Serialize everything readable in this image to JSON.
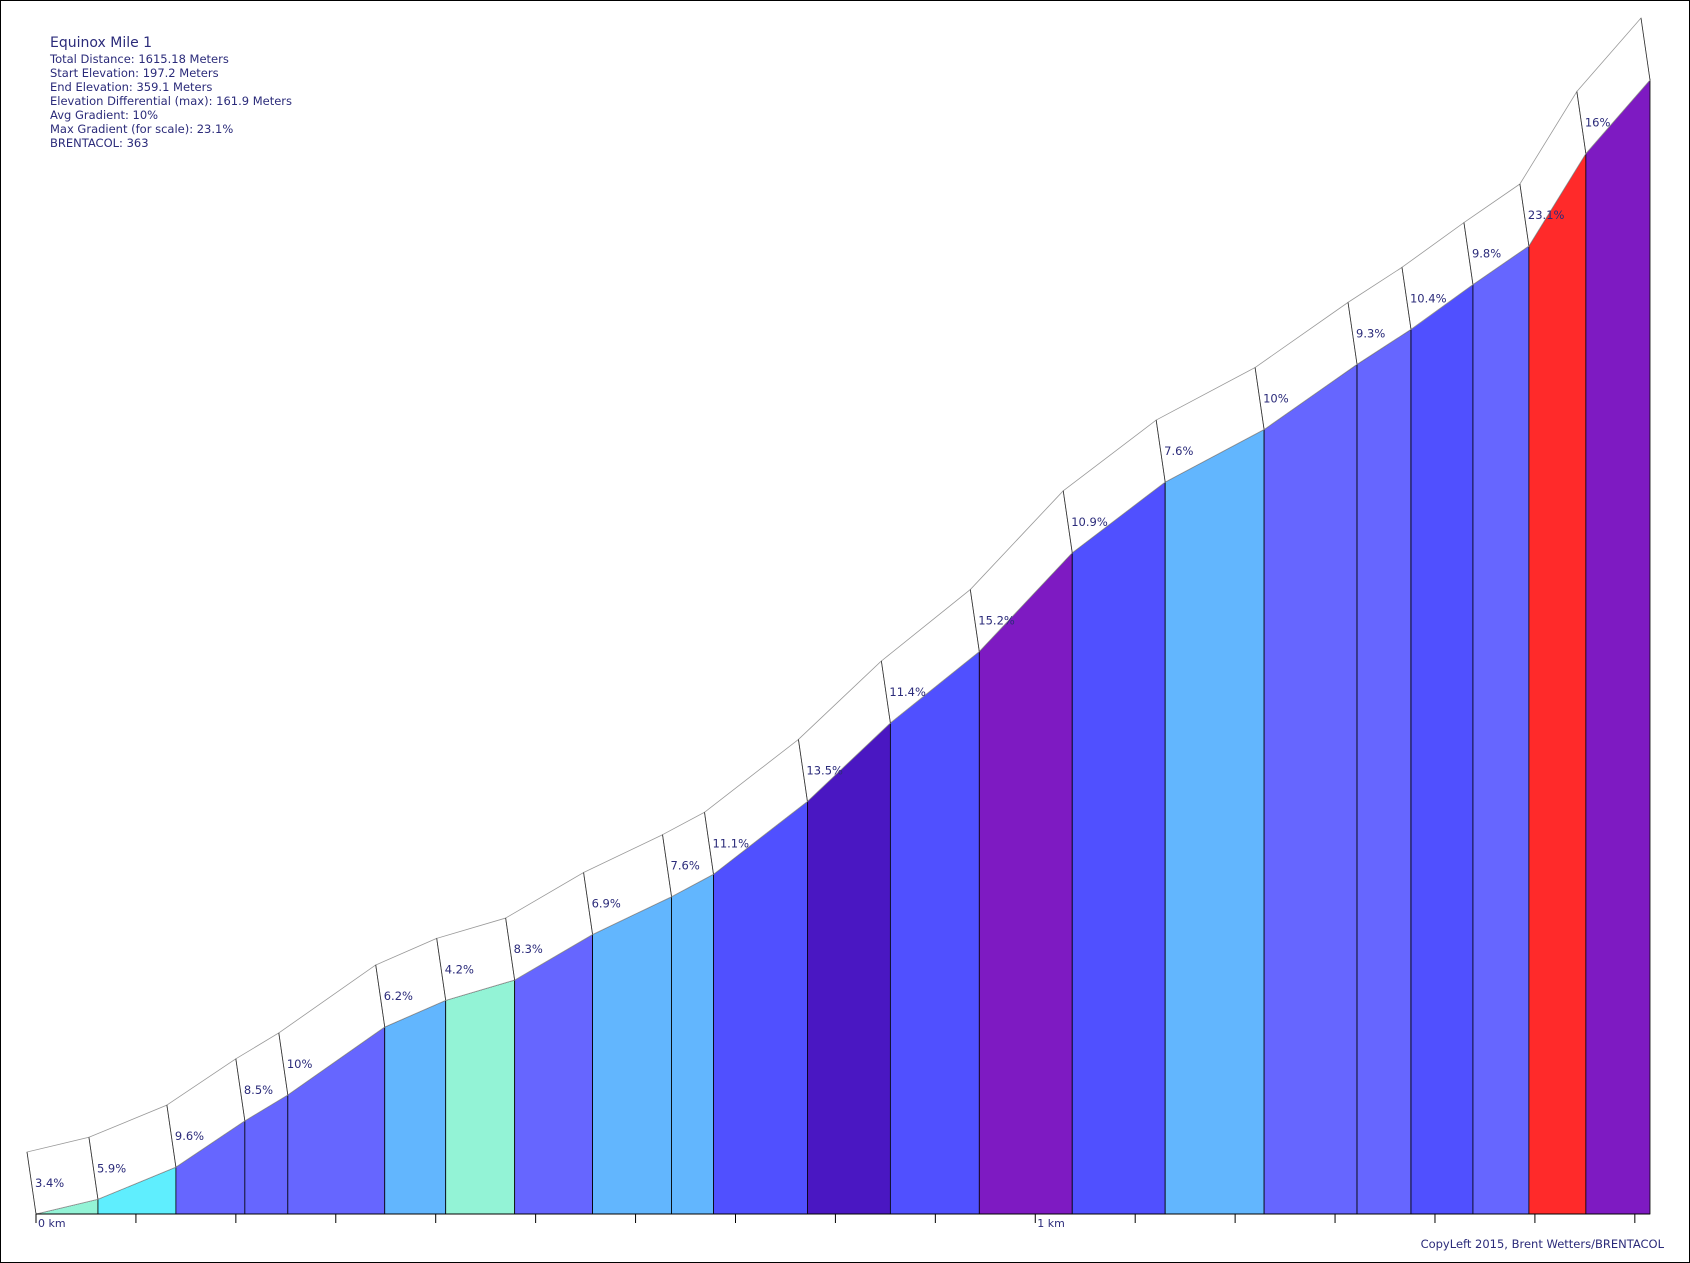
{
  "info": {
    "title": "Equinox Mile 1",
    "lines": [
      "Total Distance: 1615.18 Meters",
      "Start Elevation: 197.2 Meters",
      "End Elevation: 359.1 Meters",
      "Elevation Differential (max): 161.9 Meters",
      "Avg Gradient: 10%",
      "Max Gradient (for scale): 23.1%",
      "BRENTACOL: 363"
    ]
  },
  "copyleft": "CopyLeft 2015, Brent Wetters/BRENTACOL",
  "chart_data": {
    "type": "area",
    "title": "Equinox Mile 1",
    "xlabel": "",
    "ylabel": "",
    "x_unit": "km",
    "x_tick_labels": [
      "0 km",
      "1 km"
    ],
    "xlim": [
      0,
      1.61518
    ],
    "ylim": [
      197.2,
      359.1
    ],
    "segments": [
      {
        "start_km": 0.0,
        "end_km": 0.062,
        "gradient": 3.4,
        "label": "3.4%",
        "color": "#93f3d6"
      },
      {
        "start_km": 0.062,
        "end_km": 0.14,
        "gradient": 5.9,
        "label": "5.9%",
        "color": "#5feefe"
      },
      {
        "start_km": 0.14,
        "end_km": 0.209,
        "gradient": 9.6,
        "label": "9.6%",
        "color": "#6666ff"
      },
      {
        "start_km": 0.209,
        "end_km": 0.252,
        "gradient": 8.5,
        "label": "8.5%",
        "color": "#6666ff"
      },
      {
        "start_km": 0.252,
        "end_km": 0.349,
        "gradient": 10,
        "label": "10%",
        "color": "#6666ff"
      },
      {
        "start_km": 0.349,
        "end_km": 0.41,
        "gradient": 6.2,
        "label": "6.2%",
        "color": "#62b6fe"
      },
      {
        "start_km": 0.41,
        "end_km": 0.479,
        "gradient": 4.2,
        "label": "4.2%",
        "color": "#93f3d6"
      },
      {
        "start_km": 0.479,
        "end_km": 0.557,
        "gradient": 8.3,
        "label": "8.3%",
        "color": "#6666ff"
      },
      {
        "start_km": 0.557,
        "end_km": 0.636,
        "gradient": 6.9,
        "label": "6.9%",
        "color": "#62b6fe"
      },
      {
        "start_km": 0.636,
        "end_km": 0.678,
        "gradient": 7.6,
        "label": "7.6%",
        "color": "#62b6fe"
      },
      {
        "start_km": 0.678,
        "end_km": 0.772,
        "gradient": 11.1,
        "label": "11.1%",
        "color": "#5050ff"
      },
      {
        "start_km": 0.772,
        "end_km": 0.855,
        "gradient": 13.5,
        "label": "13.5%",
        "color": "#4a17c2"
      },
      {
        "start_km": 0.855,
        "end_km": 0.944,
        "gradient": 11.4,
        "label": "11.4%",
        "color": "#5050ff"
      },
      {
        "start_km": 0.944,
        "end_km": 1.037,
        "gradient": 15.2,
        "label": "15.2%",
        "color": "#7e1ac2"
      },
      {
        "start_km": 1.037,
        "end_km": 1.13,
        "gradient": 10.9,
        "label": "10.9%",
        "color": "#5050ff"
      },
      {
        "start_km": 1.13,
        "end_km": 1.229,
        "gradient": 7.6,
        "label": "7.6%",
        "color": "#62b6fe"
      },
      {
        "start_km": 1.229,
        "end_km": 1.322,
        "gradient": 10,
        "label": "10%",
        "color": "#6666ff"
      },
      {
        "start_km": 1.322,
        "end_km": 1.376,
        "gradient": 9.3,
        "label": "9.3%",
        "color": "#6666ff"
      },
      {
        "start_km": 1.376,
        "end_km": 1.438,
        "gradient": 10.4,
        "label": "10.4%",
        "color": "#5050ff"
      },
      {
        "start_km": 1.438,
        "end_km": 1.494,
        "gradient": 9.8,
        "label": "9.8%",
        "color": "#6666ff"
      },
      {
        "start_km": 1.494,
        "end_km": 1.551,
        "gradient": 23.1,
        "label": "23.1%",
        "color": "#ff2a2a"
      },
      {
        "start_km": 1.551,
        "end_km": 1.61518,
        "gradient": 16,
        "label": "16%",
        "color": "#7e1ac2"
      }
    ],
    "elevation_points_m": [
      197.2,
      199.3,
      203.9,
      210.5,
      214.2,
      223.9,
      227.7,
      230.6,
      237.1,
      242.5,
      245.7,
      256.1,
      267.3,
      277.5,
      291.6,
      301.7,
      309.2,
      318.5,
      323.5,
      329.9,
      335.4,
      348.6,
      359.1
    ],
    "grid": false,
    "legend": "none"
  }
}
